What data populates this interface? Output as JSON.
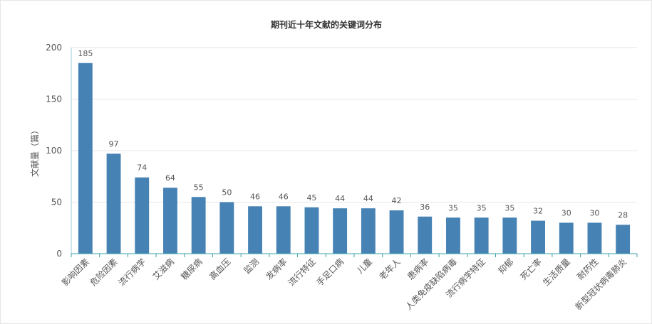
{
  "chart_data": {
    "type": "bar",
    "title": "期刊近十年文献的关键词分布",
    "xlabel": "",
    "ylabel": "文献量（篇）",
    "ylim": [
      0,
      200
    ],
    "yticks": [
      0,
      50,
      100,
      150,
      200
    ],
    "grid": true,
    "bar_color": "#4682b4",
    "categories": [
      "影响因素",
      "危险因素",
      "流行病学",
      "艾滋病",
      "糖尿病",
      "高血压",
      "监测",
      "发病率",
      "流行特征",
      "手足口病",
      "儿童",
      "老年人",
      "患病率",
      "人类免疫缺陷病毒",
      "流行病学特征",
      "抑郁",
      "死亡率",
      "生活质量",
      "耐药性",
      "新型冠状病毒肺炎"
    ],
    "values": [
      185,
      97,
      74,
      64,
      55,
      50,
      46,
      46,
      45,
      44,
      44,
      42,
      36,
      35,
      35,
      35,
      32,
      30,
      30,
      28
    ]
  }
}
